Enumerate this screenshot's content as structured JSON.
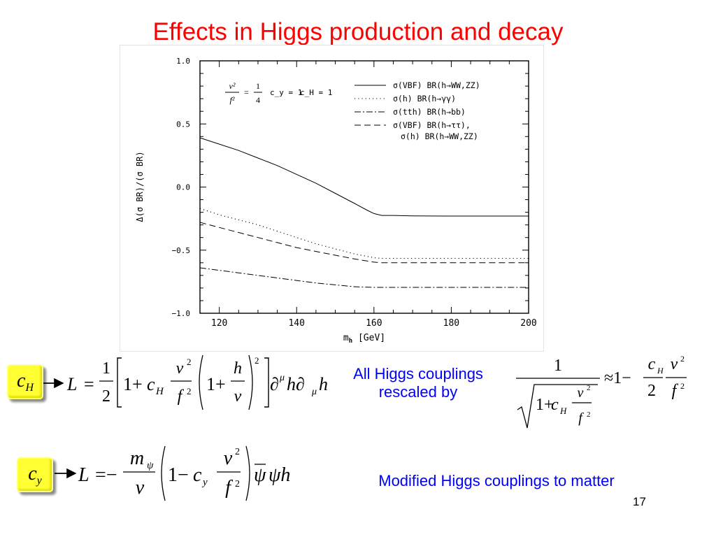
{
  "slide": {
    "title": "Effects in Higgs production and decay",
    "note_couplings_line1": "All Higgs couplings",
    "note_couplings_line2": "rescaled by",
    "note_matter": "Modified Higgs couplings to matter",
    "page_number": "17",
    "badge_cH": "c",
    "badge_cH_sub": "H",
    "badge_cy": "c",
    "badge_cy_sub": "y",
    "title_color": "#ff0000",
    "note_color": "#0000ff",
    "badge_color": "#ffff33"
  },
  "chart_data": {
    "type": "line",
    "xlabel": "m_h [GeV]",
    "ylabel": "Δ(σ BR)/(σ BR)",
    "xlim": [
      115,
      200
    ],
    "ylim": [
      -1.0,
      1.0
    ],
    "x_ticks": [
      "120",
      "140",
      "160",
      "180",
      "200"
    ],
    "x_tick_values": [
      120,
      140,
      160,
      180,
      200
    ],
    "y_ticks": [
      "1.0",
      "0.5",
      "0.0",
      "−0.5",
      "−1.0"
    ],
    "y_tick_values": [
      1.0,
      0.5,
      0.0,
      -0.5,
      -1.0
    ],
    "grid": false,
    "legend_position": "top-right",
    "annotation": {
      "lhs_num": "v²",
      "lhs_den": "f²",
      "rhs_num": "1",
      "rhs_den": "4",
      "cy_text": "c_y = 1",
      "cH_text": "c_H = 1"
    },
    "series": [
      {
        "name": "σ(VBF)  BR(h→WW,ZZ)",
        "style": "solid",
        "x": [
          115,
          120,
          125,
          130,
          135,
          140,
          145,
          150,
          155,
          158,
          160,
          162,
          165,
          170,
          180,
          190,
          200
        ],
        "y": [
          0.39,
          0.34,
          0.29,
          0.23,
          0.17,
          0.1,
          0.03,
          -0.05,
          -0.13,
          -0.18,
          -0.21,
          -0.225,
          -0.225,
          -0.228,
          -0.23,
          -0.23,
          -0.23
        ]
      },
      {
        "name": "σ(h)  BR(h→γγ)",
        "style": "dotted",
        "x": [
          115,
          120,
          125,
          130,
          135,
          140,
          145,
          150,
          155,
          160,
          162,
          165,
          170,
          180,
          190,
          200
        ],
        "y": [
          -0.17,
          -0.22,
          -0.26,
          -0.3,
          -0.35,
          -0.4,
          -0.45,
          -0.49,
          -0.53,
          -0.56,
          -0.565,
          -0.565,
          -0.565,
          -0.565,
          -0.565,
          -0.565
        ]
      },
      {
        "name": "σ(tth)  BR(h→bb)",
        "style": "dashdot",
        "x": [
          115,
          120,
          125,
          130,
          135,
          140,
          145,
          150,
          155,
          160,
          162,
          170,
          180,
          190,
          200
        ],
        "y": [
          -0.64,
          -0.66,
          -0.68,
          -0.7,
          -0.72,
          -0.74,
          -0.76,
          -0.775,
          -0.79,
          -0.795,
          -0.795,
          -0.795,
          -0.795,
          -0.795,
          -0.795
        ]
      },
      {
        "name": "σ(VBF)  BR(h→ττ),",
        "name_line2": "σ(h)  BR(h→WW,ZZ)",
        "style": "dashed",
        "x": [
          115,
          120,
          125,
          130,
          135,
          140,
          145,
          150,
          155,
          160,
          162,
          170,
          180,
          190,
          200
        ],
        "y": [
          -0.28,
          -0.32,
          -0.36,
          -0.4,
          -0.44,
          -0.48,
          -0.51,
          -0.54,
          -0.57,
          -0.595,
          -0.6,
          -0.6,
          -0.6,
          -0.6,
          -0.6
        ]
      }
    ]
  }
}
